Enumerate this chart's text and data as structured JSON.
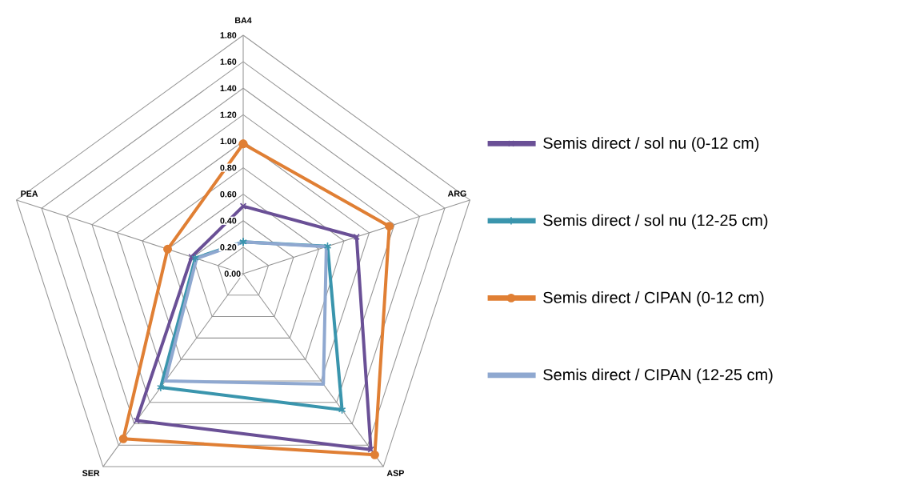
{
  "chart_data": {
    "type": "radar",
    "categories": [
      "BA4",
      "ARG",
      "ASP",
      "SER",
      "PEA"
    ],
    "series": [
      {
        "name": "Semis direct / sol nu (0-12 cm)",
        "color": "#6a5096",
        "marker": "cross",
        "values": [
          0.51,
          0.9,
          1.64,
          1.37,
          0.41
        ]
      },
      {
        "name": "Semis direct / sol nu (12-25 cm)",
        "color": "#3a95ad",
        "marker": "star",
        "values": [
          0.24,
          0.67,
          1.27,
          1.06,
          0.38
        ]
      },
      {
        "name": "Semis direct / CIPAN (0-12 cm)",
        "color": "#e07f34",
        "marker": "circle",
        "values": [
          0.98,
          1.16,
          1.69,
          1.54,
          0.6
        ]
      },
      {
        "name": "Semis direct / CIPAN (12-25 cm)",
        "color": "#8fa8d0",
        "marker": "none",
        "values": [
          0.24,
          0.66,
          1.03,
          1.0,
          0.37
        ]
      }
    ],
    "ylim": [
      0,
      1.8
    ],
    "yticks": [
      {
        "value": 0,
        "label": "0.00"
      },
      {
        "value": 0.2,
        "label": "0.20"
      },
      {
        "value": 0.4,
        "label": "0.40"
      },
      {
        "value": 0.6,
        "label": "0.60"
      },
      {
        "value": 0.8,
        "label": "0.80"
      },
      {
        "value": 1.0,
        "label": "1.00"
      },
      {
        "value": 1.2,
        "label": "1.20"
      },
      {
        "value": 1.4,
        "label": "1.40"
      },
      {
        "value": 1.6,
        "label": "1.60"
      },
      {
        "value": 1.8,
        "label": "1.80"
      }
    ],
    "grid": true,
    "legend": "right"
  }
}
